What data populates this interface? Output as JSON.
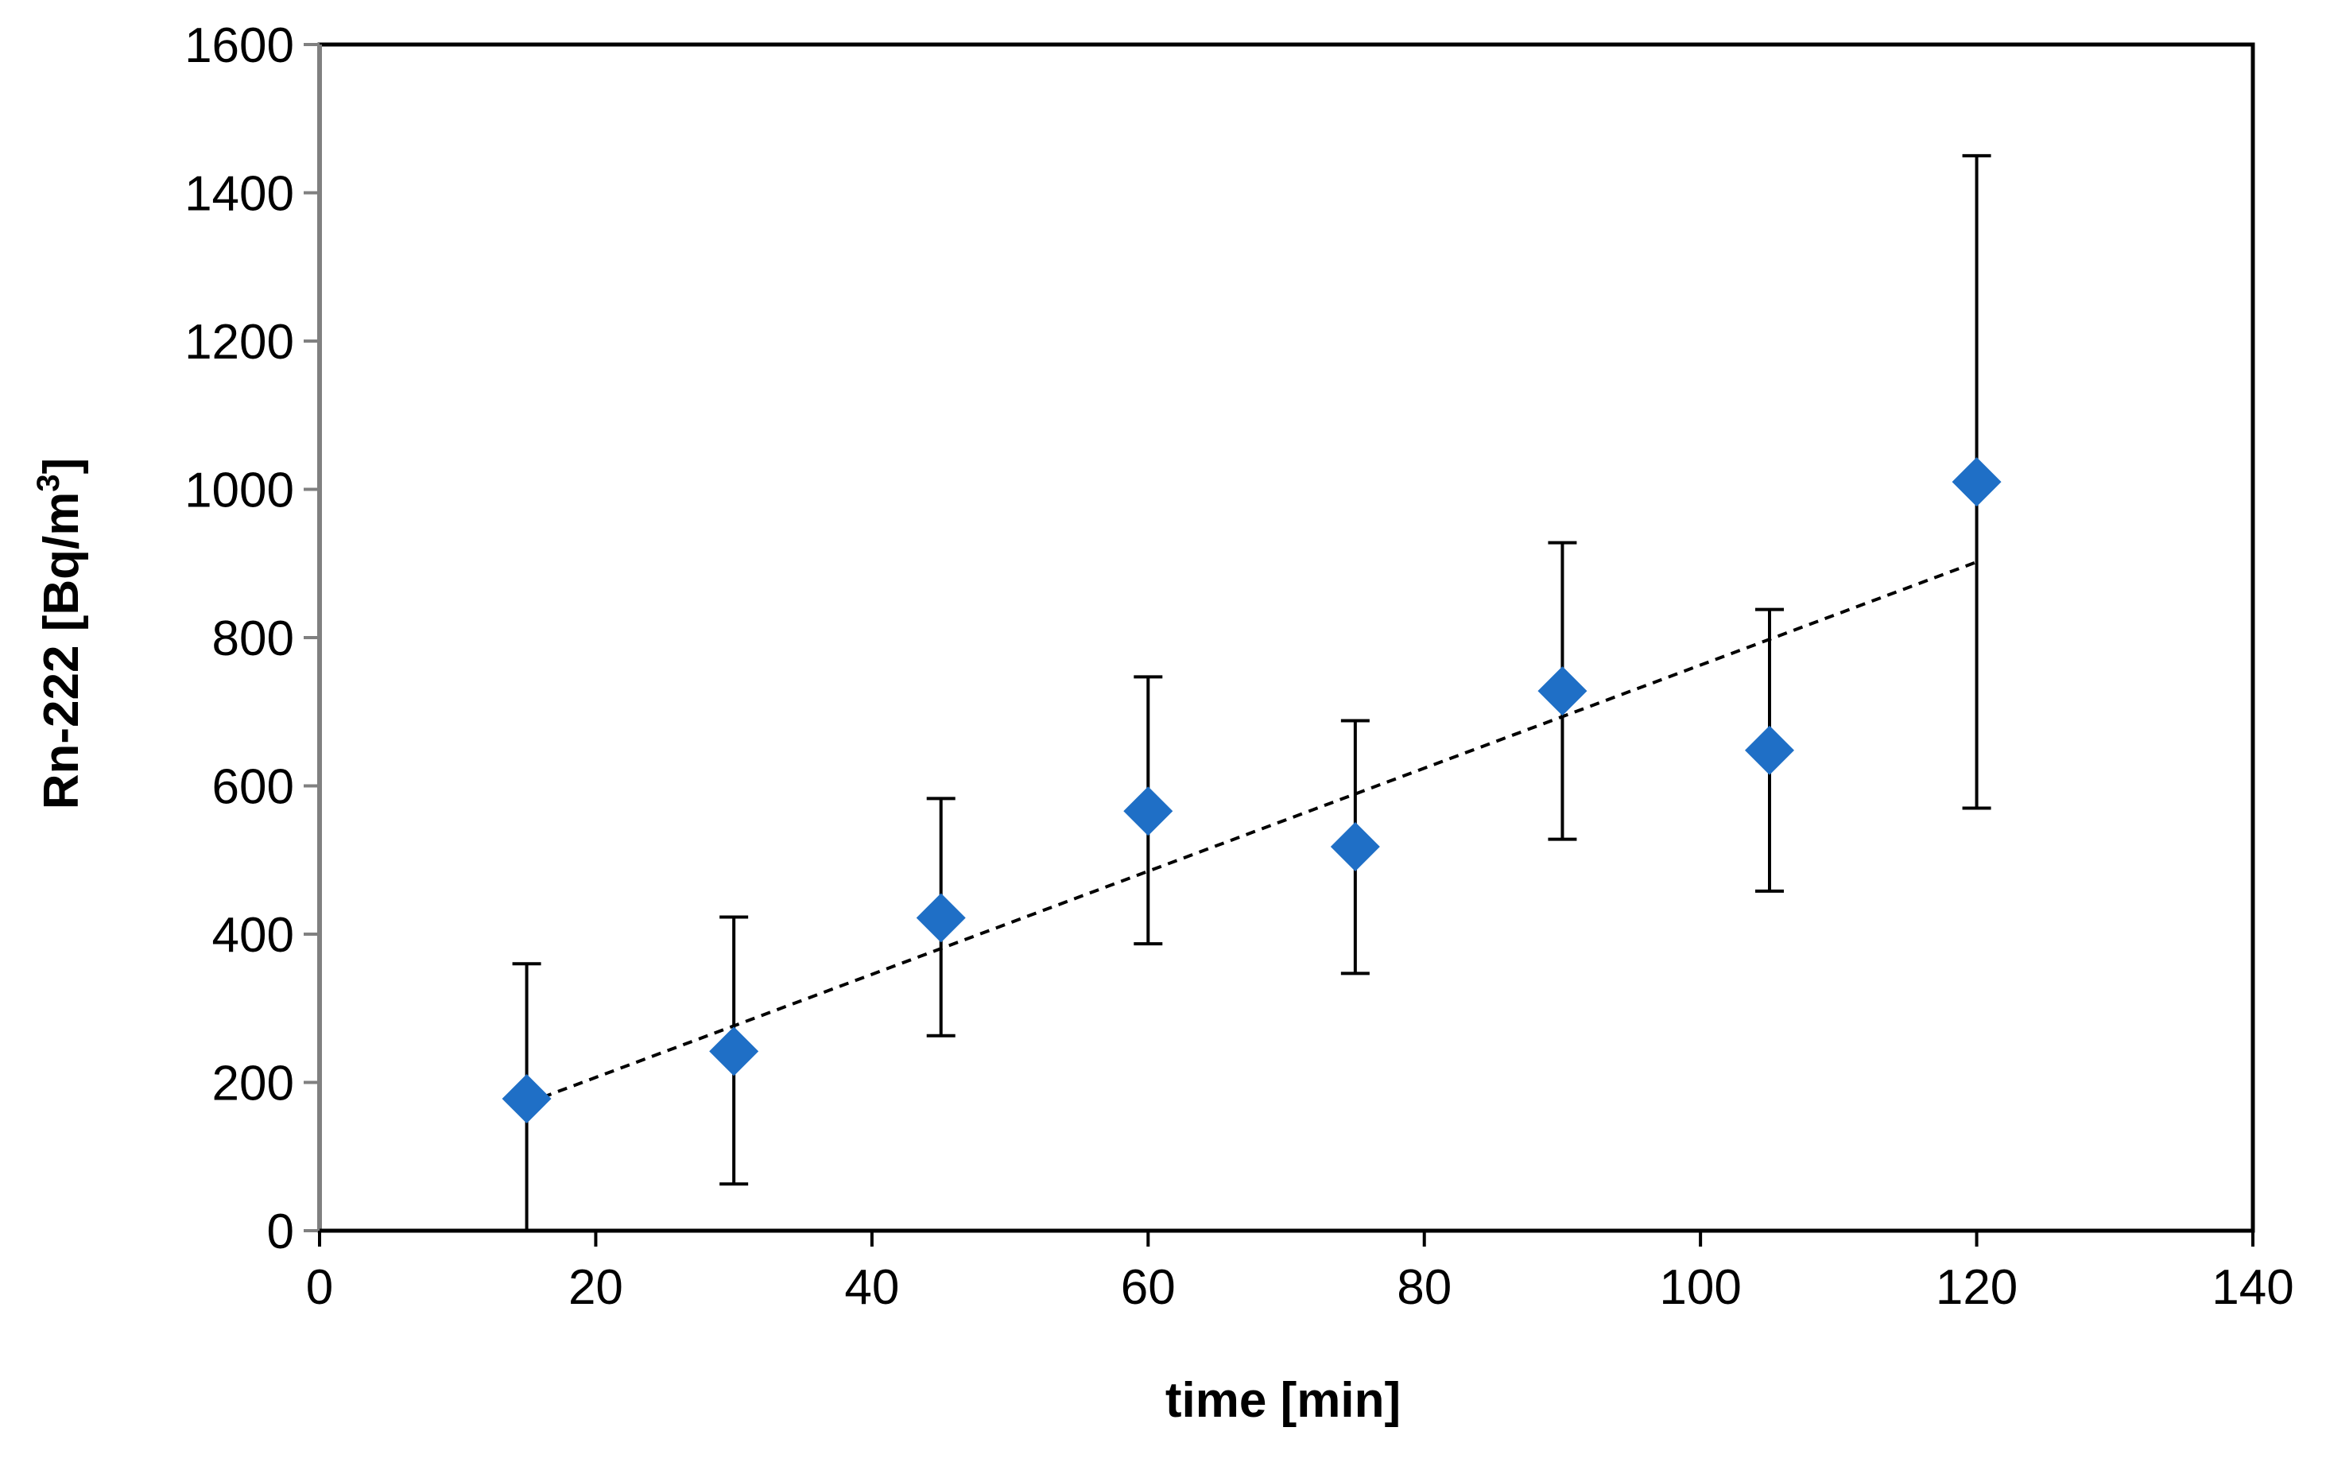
{
  "chart_data": {
    "type": "scatter",
    "title": "",
    "xlabel": "time [min]",
    "ylabel_parts": {
      "main": "Rn-222 [Bq/m",
      "sup": "3",
      "close": "]"
    },
    "xlim": [
      0,
      140
    ],
    "ylim": [
      0,
      1600
    ],
    "xticks": [
      0,
      20,
      40,
      60,
      80,
      100,
      120,
      140
    ],
    "yticks": [
      0,
      200,
      400,
      600,
      800,
      1000,
      1200,
      1400,
      1600
    ],
    "grid": false,
    "legend": "none",
    "marker": "diamond",
    "marker_color": "#1F6FC6",
    "series": [
      {
        "name": "Rn-222",
        "x": [
          15,
          30,
          45,
          60,
          75,
          90,
          105,
          120
        ],
        "y": [
          178,
          242,
          422,
          566,
          518,
          728,
          648,
          1010
        ],
        "err_low": [
          0,
          63,
          263,
          387,
          347,
          528,
          458,
          570
        ],
        "err_high": [
          360,
          423,
          583,
          747,
          688,
          928,
          838,
          1450
        ]
      }
    ],
    "trendline": {
      "type": "linear",
      "style": "dashed",
      "x": [
        15,
        120
      ],
      "y": [
        172,
        902
      ]
    }
  }
}
